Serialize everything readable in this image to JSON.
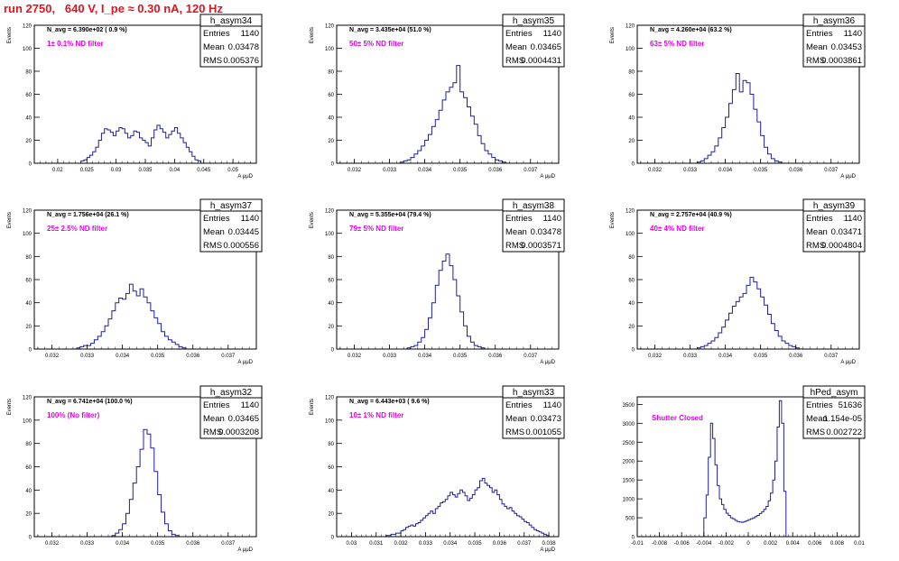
{
  "run_title": "run 2750,   640 V, I_pe ≈ 0.30 nA, 120 Hz",
  "colors": {
    "title": "#e0141e",
    "hist": "#1f1f99",
    "note": "#e600e6",
    "axis": "#000000"
  },
  "chart_data": [
    {
      "type": "bar",
      "name": "h_asym34",
      "ylabel": "Events",
      "xlabel": "A_{μμD}",
      "xlim": [
        0.016,
        0.054
      ],
      "ylim": [
        0,
        120
      ],
      "xticks": [
        0.02,
        0.025,
        0.03,
        0.035,
        0.04,
        0.045,
        0.05
      ],
      "xtick_labels": [
        "0.02",
        "0.025",
        "0.03",
        "0.035",
        "0.04",
        "0.045",
        "0.05"
      ],
      "yticks": [
        0,
        20,
        40,
        60,
        80,
        100,
        120
      ],
      "navg": "N_avg = 6.390e+02 ( 0.9 %)",
      "note": "1± 0.1% ND filter",
      "stats": {
        "title": "h_asym34",
        "rows": [
          [
            "Entries",
            "1140"
          ],
          [
            "Mean",
            "0.03478"
          ],
          [
            "RMS",
            "0.005376"
          ]
        ]
      },
      "bin_start": 0.024,
      "bin_width": 0.0005,
      "values": [
        2,
        3,
        5,
        7,
        10,
        14,
        20,
        26,
        30,
        29,
        27,
        24,
        28,
        31,
        30,
        26,
        22,
        24,
        28,
        27,
        22,
        20,
        18,
        15,
        22,
        29,
        33,
        30,
        27,
        22,
        25,
        28,
        31,
        26,
        22,
        18,
        14,
        10,
        6,
        3,
        2
      ]
    },
    {
      "type": "bar",
      "name": "h_asym35",
      "ylabel": "Events",
      "xlabel": "A_{μμD}",
      "xlim": [
        0.0315,
        0.0378
      ],
      "ylim": [
        0,
        120
      ],
      "xticks": [
        0.032,
        0.033,
        0.034,
        0.035,
        0.036,
        0.037
      ],
      "xtick_labels": [
        "0.032",
        "0.033",
        "0.034",
        "0.035",
        "0.036",
        "0.037"
      ],
      "yticks": [
        0,
        20,
        40,
        60,
        80,
        100,
        120
      ],
      "navg": "N_avg = 3.435e+04 (51.0 %)",
      "note": "50± 5% ND filter",
      "stats": {
        "title": "h_asym35",
        "rows": [
          [
            "Entries",
            "1140"
          ],
          [
            "Mean",
            "0.03465"
          ],
          [
            "RMS",
            "0.0004431"
          ]
        ]
      },
      "bin_start": 0.0333,
      "bin_width": 0.0001,
      "values": [
        1,
        2,
        3,
        5,
        8,
        11,
        15,
        20,
        25,
        32,
        38,
        46,
        55,
        62,
        66,
        70,
        85,
        62,
        57,
        49,
        41,
        34,
        24,
        17,
        11,
        8,
        5,
        3,
        2,
        1
      ]
    },
    {
      "type": "bar",
      "name": "h_asym36",
      "ylabel": "Events",
      "xlabel": "A_{μμD}",
      "xlim": [
        0.0315,
        0.0378
      ],
      "ylim": [
        0,
        120
      ],
      "xticks": [
        0.032,
        0.033,
        0.034,
        0.035,
        0.036,
        0.037
      ],
      "xtick_labels": [
        "0.032",
        "0.033",
        "0.034",
        "0.035",
        "0.036",
        "0.037"
      ],
      "yticks": [
        0,
        20,
        40,
        60,
        80,
        100,
        120
      ],
      "navg": "N_avg = 4.260e+04 (63.2 %)",
      "note": "63± 5% ND filter",
      "stats": {
        "title": "h_asym36",
        "rows": [
          [
            "Entries",
            "1140"
          ],
          [
            "Mean",
            "0.03453"
          ],
          [
            "RMS",
            "0.0003861"
          ]
        ]
      },
      "bin_start": 0.0332,
      "bin_width": 0.0001,
      "values": [
        1,
        2,
        4,
        7,
        10,
        15,
        22,
        31,
        40,
        52,
        64,
        78,
        62,
        72,
        70,
        60,
        47,
        36,
        24,
        14,
        8,
        4,
        2,
        1
      ]
    },
    {
      "type": "bar",
      "name": "h_asym37",
      "ylabel": "Events",
      "xlabel": "A_{μμD}",
      "xlim": [
        0.0315,
        0.0378
      ],
      "ylim": [
        0,
        120
      ],
      "xticks": [
        0.032,
        0.033,
        0.034,
        0.035,
        0.036,
        0.037
      ],
      "xtick_labels": [
        "0.032",
        "0.033",
        "0.034",
        "0.035",
        "0.036",
        "0.037"
      ],
      "yticks": [
        0,
        20,
        40,
        60,
        80,
        100,
        120
      ],
      "navg": "N_avg = 1.756e+04 (26.1 %)",
      "note": "25± 2.5% ND filter",
      "stats": {
        "title": "h_asym37",
        "rows": [
          [
            "Entries",
            "1140"
          ],
          [
            "Mean",
            "0.03445"
          ],
          [
            "RMS",
            "0.000556"
          ]
        ]
      },
      "bin_start": 0.0327,
      "bin_width": 0.0001,
      "values": [
        1,
        2,
        3,
        3,
        5,
        8,
        11,
        15,
        20,
        26,
        33,
        40,
        44,
        43,
        48,
        56,
        50,
        46,
        52,
        45,
        40,
        33,
        27,
        22,
        15,
        11,
        8,
        6,
        4,
        2,
        1
      ]
    },
    {
      "type": "bar",
      "name": "h_asym38",
      "ylabel": "Events",
      "xlabel": "A_{μμD}",
      "xlim": [
        0.0315,
        0.0378
      ],
      "ylim": [
        0,
        120
      ],
      "xticks": [
        0.032,
        0.033,
        0.034,
        0.035,
        0.036,
        0.037
      ],
      "xtick_labels": [
        "0.032",
        "0.033",
        "0.034",
        "0.035",
        "0.036",
        "0.037"
      ],
      "yticks": [
        0,
        20,
        40,
        60,
        80,
        100,
        120
      ],
      "navg": "N_avg = 5.355e+04 (79.4 %)",
      "note": "79± 5% ND filter",
      "stats": {
        "title": "h_asym38",
        "rows": [
          [
            "Entries",
            "1140"
          ],
          [
            "Mean",
            "0.03478"
          ],
          [
            "RMS",
            "0.0003571"
          ]
        ]
      },
      "bin_start": 0.0335,
      "bin_width": 0.0001,
      "values": [
        1,
        2,
        3,
        6,
        10,
        17,
        27,
        40,
        55,
        68,
        76,
        82,
        72,
        60,
        46,
        32,
        20,
        11,
        6,
        3,
        2,
        1
      ]
    },
    {
      "type": "bar",
      "name": "h_asym39",
      "ylabel": "Events",
      "xlabel": "A_{μμD}",
      "xlim": [
        0.0315,
        0.0378
      ],
      "ylim": [
        0,
        120
      ],
      "xticks": [
        0.032,
        0.033,
        0.034,
        0.035,
        0.036,
        0.037
      ],
      "xtick_labels": [
        "0.032",
        "0.033",
        "0.034",
        "0.035",
        "0.036",
        "0.037"
      ],
      "yticks": [
        0,
        20,
        40,
        60,
        80,
        100,
        120
      ],
      "navg": "N_avg = 2.757e+04 (40.9 %)",
      "note": "40± 4% ND filter",
      "stats": {
        "title": "h_asym39",
        "rows": [
          [
            "Entries",
            "1140"
          ],
          [
            "Mean",
            "0.03471"
          ],
          [
            "RMS",
            "0.0004804"
          ]
        ]
      },
      "bin_start": 0.0332,
      "bin_width": 0.0001,
      "values": [
        1,
        2,
        3,
        5,
        7,
        10,
        14,
        19,
        25,
        31,
        37,
        41,
        45,
        48,
        55,
        62,
        58,
        52,
        45,
        38,
        30,
        22,
        16,
        11,
        7,
        5,
        3,
        2,
        1
      ]
    },
    {
      "type": "bar",
      "name": "h_asym32",
      "ylabel": "Events",
      "xlabel": "A_{μμD}",
      "xlim": [
        0.0315,
        0.0378
      ],
      "ylim": [
        0,
        120
      ],
      "xticks": [
        0.032,
        0.033,
        0.034,
        0.035,
        0.036,
        0.037
      ],
      "xtick_labels": [
        "0.032",
        "0.033",
        "0.034",
        "0.035",
        "0.036",
        "0.037"
      ],
      "yticks": [
        0,
        20,
        40,
        60,
        80,
        100,
        120
      ],
      "navg": "N_avg = 6.741e+04 (100.0 %)",
      "note": "100% (No filter)",
      "stats": {
        "title": "h_asym32",
        "rows": [
          [
            "Entries",
            "1140"
          ],
          [
            "Mean",
            "0.03465"
          ],
          [
            "RMS",
            "0.0003208"
          ]
        ]
      },
      "bin_start": 0.0337,
      "bin_width": 0.0001,
      "values": [
        1,
        3,
        6,
        11,
        20,
        32,
        46,
        60,
        75,
        92,
        88,
        76,
        56,
        36,
        21,
        11,
        5,
        2,
        1
      ]
    },
    {
      "type": "bar",
      "name": "h_asym33",
      "ylabel": "Events",
      "xlabel": "A_{μμD}",
      "xlim": [
        0.0294,
        0.0384
      ],
      "ylim": [
        0,
        120
      ],
      "xticks": [
        0.03,
        0.031,
        0.032,
        0.033,
        0.034,
        0.035,
        0.036,
        0.037,
        0.038
      ],
      "xtick_labels": [
        "0.03",
        "0.031",
        "0.032",
        "0.033",
        "0.034",
        "0.035",
        "0.036",
        "0.037",
        "0.038"
      ],
      "yticks": [
        0,
        20,
        40,
        60,
        80,
        100,
        120
      ],
      "navg": "N_avg = 6.443e+03 ( 9.6 %)",
      "note": "10± 1% ND filter",
      "stats": {
        "title": "h_asym33",
        "rows": [
          [
            "Entries",
            "1140"
          ],
          [
            "Mean",
            "0.03473"
          ],
          [
            "RMS",
            "0.001055"
          ]
        ]
      },
      "bin_start": 0.0314,
      "bin_width": 0.0001,
      "values": [
        1,
        1,
        2,
        2,
        3,
        3,
        5,
        6,
        8,
        9,
        10,
        9,
        11,
        12,
        14,
        16,
        18,
        20,
        22,
        20,
        24,
        26,
        29,
        30,
        32,
        35,
        38,
        36,
        34,
        37,
        40,
        38,
        35,
        31,
        33,
        36,
        40,
        42,
        48,
        50,
        46,
        44,
        42,
        38,
        40,
        36,
        32,
        28,
        26,
        24,
        25,
        22,
        20,
        18,
        17,
        15,
        13,
        12,
        10,
        8,
        6,
        5,
        4,
        3,
        2,
        1
      ]
    },
    {
      "type": "bar",
      "name": "hPed_asym",
      "ylabel": "",
      "xlabel": "",
      "xlim": [
        -0.01,
        0.01
      ],
      "ylim": [
        0,
        3700
      ],
      "xticks": [
        -0.01,
        -0.008,
        -0.006,
        -0.004,
        -0.002,
        0,
        0.002,
        0.004,
        0.006,
        0.008,
        0.01
      ],
      "xtick_labels": [
        "-0.01",
        "-0.008",
        "-0.006",
        "-0.004",
        "-0.002",
        "0",
        "0.002",
        "0.004",
        "0.006",
        "0.008",
        "0.01"
      ],
      "yticks": [
        0,
        500,
        1000,
        1500,
        2000,
        2500,
        3000,
        3500
      ],
      "navg": "",
      "note": "Shutter Closed",
      "stats": {
        "title": "hPed_asym",
        "rows": [
          [
            "Entries",
            "51636"
          ],
          [
            "Mean",
            "1.154e-05"
          ],
          [
            "RMS",
            "0.002722"
          ]
        ]
      },
      "bin_start": -0.004,
      "bin_width": 0.0002,
      "values": [
        500,
        1100,
        2100,
        3000,
        2600,
        1900,
        1350,
        1000,
        850,
        720,
        620,
        560,
        500,
        470,
        430,
        400,
        390,
        380,
        400,
        420,
        450,
        470,
        500,
        530,
        560,
        610,
        660,
        720,
        800,
        950,
        1150,
        1500,
        2000,
        2900,
        3600,
        3000,
        1200,
        0
      ]
    }
  ]
}
